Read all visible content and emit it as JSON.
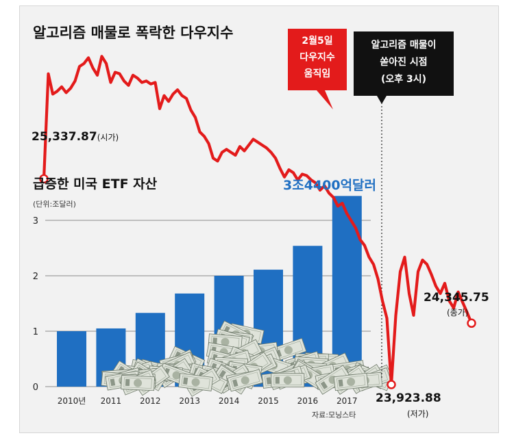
{
  "chart_data": [
    {
      "type": "line",
      "title": "알고리즘 매물로 폭락한 다우지수",
      "series": [
        {
          "values": [
            25337.87,
            26060,
            25920,
            25940,
            25970,
            25930,
            25960,
            26010,
            26110,
            26130,
            26170,
            26100,
            26050,
            26180,
            26130,
            26000,
            26070,
            26060,
            26010,
            25980,
            26050,
            26030,
            26000,
            26010,
            25990,
            26000,
            25820,
            25910,
            25870,
            25920,
            25950,
            25910,
            25890,
            25810,
            25760,
            25660,
            25630,
            25580,
            25480,
            25460,
            25520,
            25540,
            25520,
            25500,
            25560,
            25530,
            25570,
            25610,
            25590,
            25570,
            25550,
            25520,
            25480,
            25410,
            25350,
            25400,
            25380,
            25330,
            25370,
            25360,
            25330,
            25310,
            25260,
            25290,
            25240,
            25210,
            25150,
            25170,
            25100,
            25050,
            25000,
            24920,
            24880,
            24800,
            24750,
            24650,
            24500,
            24380,
            23923.88,
            24400,
            24700,
            24800,
            24550,
            24400,
            24700,
            24780,
            24750,
            24680,
            24600,
            24550,
            24620,
            24500,
            24450,
            24560,
            24490,
            24420,
            24345.75
          ],
          "color": "#e31b1b"
        }
      ],
      "annotations": [
        {
          "text": "25,337.87",
          "suffix": "(시가)",
          "value": 25337.87
        },
        {
          "text": "24,345.75",
          "suffix": "(종가)",
          "value": 24345.75
        },
        {
          "text": "23,923.88",
          "suffix": "(저가)",
          "value": 23923.88
        }
      ],
      "callouts": [
        {
          "lines": [
            "2월5일",
            "다우지수",
            "움직임"
          ],
          "bg": "#e31b1b",
          "color": "#ffffff"
        },
        {
          "lines": [
            "알고리즘 매물이",
            "쏟아진 시점",
            "(오후 3시)"
          ],
          "bg": "#111111",
          "color": "#ffffff"
        }
      ]
    },
    {
      "type": "bar",
      "title": "급증한 미국 ETF 자산",
      "unit": "(단위:조달러)",
      "categories": [
        "2010년",
        "2011",
        "2012",
        "2013",
        "2014",
        "2015",
        "2016",
        "2017"
      ],
      "values": [
        1.0,
        1.05,
        1.33,
        1.68,
        2.0,
        2.11,
        2.54,
        3.44
      ],
      "ylim": [
        0,
        3.4
      ],
      "yticks": [
        "0",
        "1",
        "2",
        "3"
      ],
      "grid": true,
      "bar_color": "#1f6fc2",
      "value_label": "3조4400억달러",
      "value_label_color": "#1f6fc2",
      "source": "자료:모닝스타"
    }
  ]
}
